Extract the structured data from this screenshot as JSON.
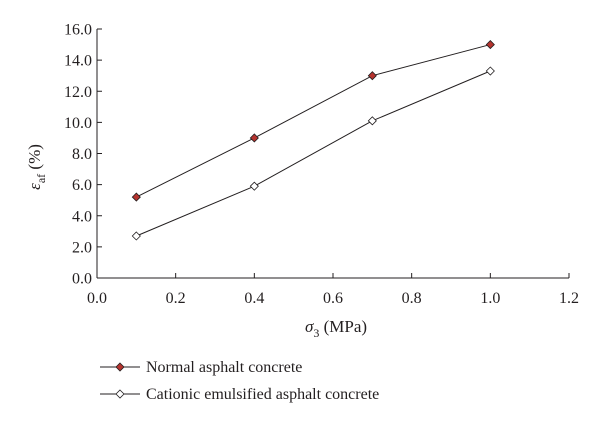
{
  "chart_data": {
    "type": "line",
    "x": [
      0.1,
      0.4,
      0.7,
      1.0
    ],
    "series": [
      {
        "name": "Normal asphalt concrete",
        "values": [
          5.2,
          9.0,
          13.0,
          15.0
        ],
        "marker": "filled-diamond",
        "marker_color": "#b5332e"
      },
      {
        "name": "Cationic emulsified asphalt concrete",
        "values": [
          2.7,
          5.9,
          10.1,
          13.3
        ],
        "marker": "open-diamond",
        "marker_color": "#ffffff"
      }
    ],
    "xlabel_main": "σ",
    "xlabel_sub": "3",
    "xlabel_unit": " (MPa)",
    "ylabel_main": "ε",
    "ylabel_sub": "af",
    "ylabel_unit": " (%)",
    "xlim": [
      0.0,
      1.2
    ],
    "ylim": [
      0.0,
      16.0
    ],
    "xticks": [
      "0.0",
      "0.2",
      "0.4",
      "0.6",
      "0.8",
      "1.0",
      "1.2"
    ],
    "yticks": [
      "0.0",
      "2.0",
      "4.0",
      "6.0",
      "8.0",
      "10.0",
      "12.0",
      "14.0",
      "16.0"
    ],
    "grid": false,
    "legend_position": "bottom-left",
    "colors": {
      "line": "#231f20",
      "axis": "#231f20",
      "filled_marker": "#b5332e"
    }
  }
}
